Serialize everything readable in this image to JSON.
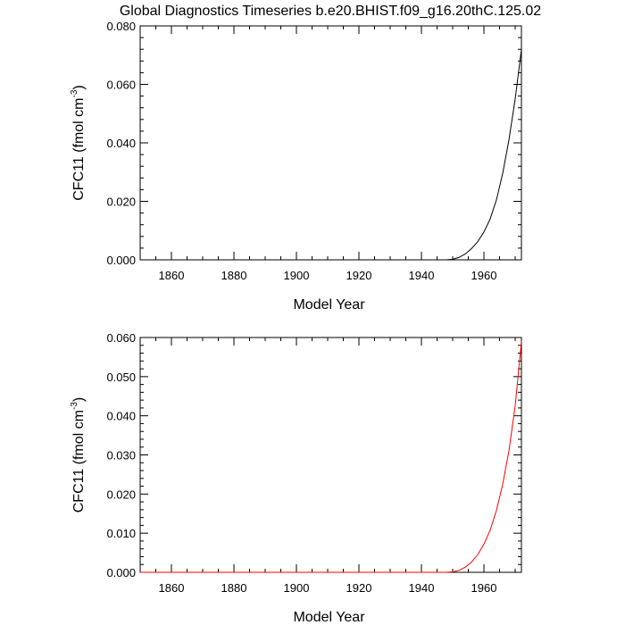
{
  "title": "Global Diagnostics Timeseries b.e20.BHIST.f09_g16.20thC.125.02",
  "chart_data": [
    {
      "type": "line",
      "ylabel_main": "CFC11 (fmol cm",
      "ylabel_sup": "-3",
      "ylabel_close": ")",
      "xlabel": "Model Year",
      "xlim": [
        1850,
        1972
      ],
      "ylim": [
        0,
        0.08
      ],
      "xticks": [
        1860,
        1880,
        1900,
        1920,
        1940,
        1960
      ],
      "xtick_labels": [
        "1860",
        "1880",
        "1900",
        "1920",
        "1940",
        "1960"
      ],
      "yticks": [
        0,
        0.02,
        0.04,
        0.06,
        0.08
      ],
      "ytick_labels": [
        "0.000",
        "0.020",
        "0.040",
        "0.060",
        "0.080"
      ],
      "series": [
        {
          "name": "CFC11",
          "color": "#000000",
          "x": [
            1850,
            1948,
            1950,
            1952,
            1954,
            1956,
            1958,
            1960,
            1962,
            1964,
            1966,
            1968,
            1970,
            1972
          ],
          "y": [
            0,
            0,
            0.0002,
            0.0008,
            0.002,
            0.0038,
            0.0062,
            0.0095,
            0.014,
            0.0205,
            0.0295,
            0.041,
            0.055,
            0.072
          ]
        }
      ]
    },
    {
      "type": "line",
      "ylabel_main": "CFC11 (fmol cm",
      "ylabel_sup": "-3",
      "ylabel_close": ")",
      "xlabel": "Model Year",
      "xlim": [
        1850,
        1972
      ],
      "ylim": [
        0,
        0.06
      ],
      "xticks": [
        1860,
        1880,
        1900,
        1920,
        1940,
        1960
      ],
      "xtick_labels": [
        "1860",
        "1880",
        "1900",
        "1920",
        "1940",
        "1960"
      ],
      "yticks": [
        0,
        0.01,
        0.02,
        0.03,
        0.04,
        0.05,
        0.06
      ],
      "ytick_labels": [
        "0.000",
        "0.010",
        "0.020",
        "0.030",
        "0.040",
        "0.050",
        "0.060"
      ],
      "series": [
        {
          "name": "CFC11",
          "color": "#ff0000",
          "x": [
            1850,
            1948,
            1950,
            1952,
            1954,
            1956,
            1958,
            1960,
            1962,
            1964,
            1966,
            1968,
            1970,
            1972
          ],
          "y": [
            0,
            0,
            0.0001,
            0.0005,
            0.0013,
            0.0026,
            0.0045,
            0.0072,
            0.0108,
            0.0158,
            0.0225,
            0.031,
            0.0425,
            0.059
          ]
        }
      ]
    }
  ]
}
